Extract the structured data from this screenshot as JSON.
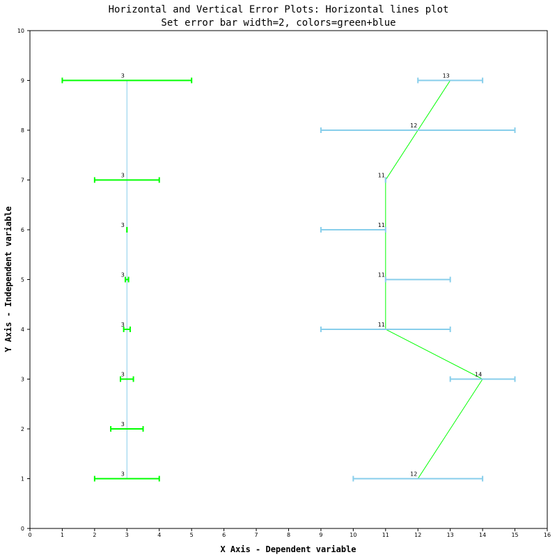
{
  "chart_data": {
    "type": "line",
    "title": "Horizontal and Vertical Error Plots: Horizontal lines plot",
    "subtitle": "Set error bar width=2, colors=green+blue",
    "xlabel": "X Axis - Dependent variable",
    "ylabel": "Y Axis - Independent variable",
    "xlim": [
      0,
      16
    ],
    "ylim": [
      0,
      10
    ],
    "x_ticks": [
      0,
      1,
      2,
      3,
      4,
      5,
      6,
      7,
      8,
      9,
      10,
      11,
      12,
      13,
      14,
      15,
      16
    ],
    "y_ticks": [
      0,
      1,
      2,
      3,
      4,
      5,
      6,
      7,
      8,
      9,
      10
    ],
    "grid": false,
    "legend": "none",
    "colors": {
      "series1_line": "#87ceeb",
      "series1_errorbar": "#00ff00",
      "series2_line": "#00ff00",
      "series2_errorbar": "#87ceeb",
      "frame": "#000000"
    },
    "series": [
      {
        "points": [
          {
            "x": 3,
            "y": 1,
            "xerr_low": 1,
            "xerr_high": 1,
            "label": "3"
          },
          {
            "x": 3,
            "y": 2,
            "xerr_low": 0.5,
            "xerr_high": 0.5,
            "label": "3"
          },
          {
            "x": 3,
            "y": 3,
            "xerr_low": 0.2,
            "xerr_high": 0.2,
            "label": "3"
          },
          {
            "x": 3,
            "y": 4,
            "xerr_low": 0.1,
            "xerr_high": 0.1,
            "label": "3"
          },
          {
            "x": 3,
            "y": 5,
            "xerr_low": 0.05,
            "xerr_high": 0.05,
            "label": "3"
          },
          {
            "x": 3,
            "y": 6,
            "xerr_low": 0,
            "xerr_high": 0,
            "label": "3"
          },
          {
            "x": 3,
            "y": 7,
            "xerr_low": 1,
            "xerr_high": 1,
            "label": "3"
          },
          {
            "x": 3,
            "y": 9,
            "xerr_low": 2,
            "xerr_high": 2,
            "label": "3"
          }
        ]
      },
      {
        "points": [
          {
            "x": 12,
            "y": 1,
            "xerr_low": 2,
            "xerr_high": 2,
            "label": "12"
          },
          {
            "x": 14,
            "y": 3,
            "xerr_low": 1,
            "xerr_high": 1,
            "label": "14"
          },
          {
            "x": 11,
            "y": 4,
            "xerr_low": 2,
            "xerr_high": 2,
            "label": "11"
          },
          {
            "x": 11,
            "y": 5,
            "xerr_low": 0,
            "xerr_high": 2,
            "label": "11"
          },
          {
            "x": 11,
            "y": 6,
            "xerr_low": 2,
            "xerr_high": 0,
            "label": "11"
          },
          {
            "x": 11,
            "y": 7,
            "xerr_low": 0,
            "xerr_high": 0,
            "label": "11"
          },
          {
            "x": 12,
            "y": 8,
            "xerr_low": 3,
            "xerr_high": 3,
            "label": "12"
          },
          {
            "x": 13,
            "y": 9,
            "xerr_low": 1,
            "xerr_high": 1,
            "label": "13"
          }
        ]
      }
    ]
  }
}
